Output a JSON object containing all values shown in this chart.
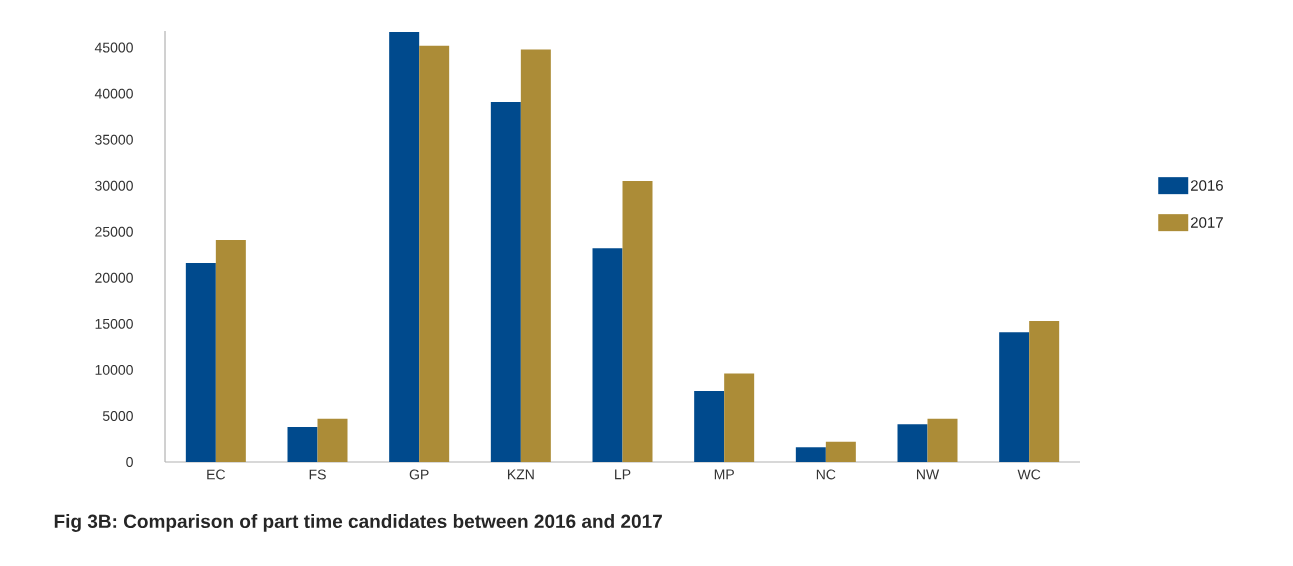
{
  "chart_data": {
    "type": "bar",
    "title": "Fig 3B: Comparison of part time candidates between 2016 and 2017",
    "categories": [
      "EC",
      "FS",
      "GP",
      "KZN",
      "LP",
      "MP",
      "NC",
      "NW",
      "WC"
    ],
    "series": [
      {
        "name": "2016",
        "color": "#004a8d",
        "values": [
          21600,
          3800,
          46700,
          39100,
          23200,
          7700,
          1600,
          4100,
          14100
        ]
      },
      {
        "name": "2017",
        "color": "#ac8c37",
        "values": [
          24100,
          4700,
          45200,
          44800,
          30500,
          9600,
          2200,
          4700,
          15300
        ]
      }
    ],
    "ylim": [
      0,
      46800
    ],
    "yticks": [
      0,
      5000,
      10000,
      15000,
      20000,
      25000,
      30000,
      35000,
      40000,
      45000
    ],
    "legend": "right"
  }
}
